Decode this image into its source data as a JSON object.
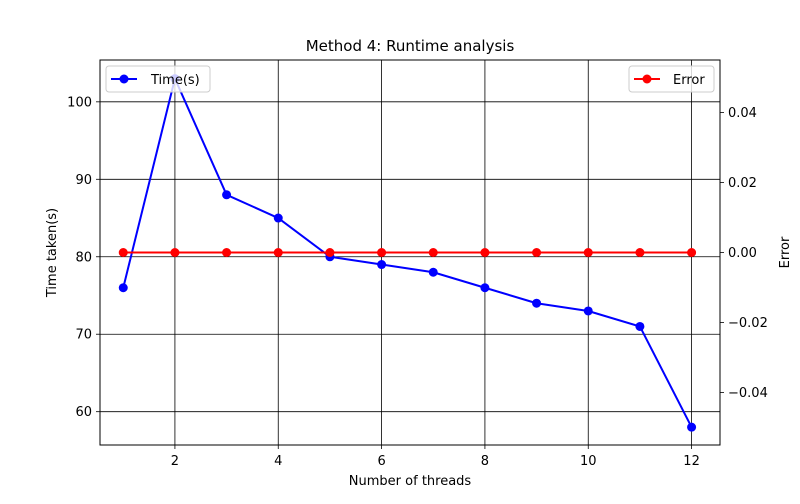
{
  "chart_data": {
    "type": "line",
    "title": "Method 4: Runtime analysis",
    "xlabel": "Number of threads",
    "ylabel": "Time taken(s)",
    "y2label": "Error",
    "x": [
      1,
      2,
      3,
      4,
      5,
      6,
      7,
      8,
      9,
      10,
      11,
      12
    ],
    "xlim": [
      0.55,
      12.55
    ],
    "ylim": [
      55.7,
      105.4
    ],
    "y2lim": [
      -0.055,
      0.055
    ],
    "xticks": [
      2,
      4,
      6,
      8,
      10,
      12
    ],
    "yticks": [
      60,
      70,
      80,
      90,
      100
    ],
    "y2ticks": [
      -0.04,
      -0.02,
      0.0,
      0.02,
      0.04
    ],
    "y2ticklabels": [
      "−0.04",
      "−0.02",
      "0.00",
      "0.02",
      "0.04"
    ],
    "grid": true,
    "series": [
      {
        "name": "Time(s)",
        "axis": "left",
        "color": "#0000ff",
        "legend": "top-left",
        "values": [
          76,
          103,
          88,
          85,
          80,
          79,
          78,
          76,
          74,
          73,
          71,
          58
        ]
      },
      {
        "name": "Error",
        "axis": "right",
        "color": "#ff0000",
        "legend": "top-right",
        "values": [
          0,
          0,
          0,
          0,
          0,
          0,
          0,
          0,
          0,
          0,
          0,
          0
        ]
      }
    ]
  }
}
